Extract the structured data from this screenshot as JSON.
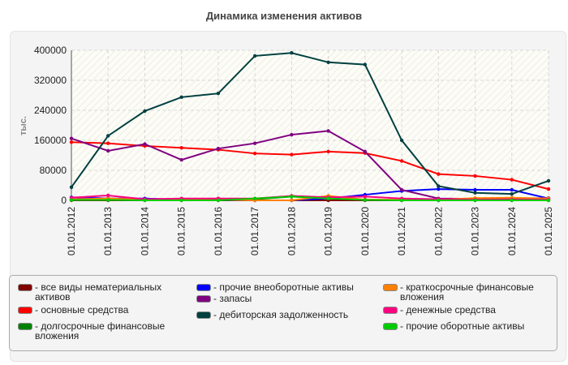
{
  "chart_data": {
    "type": "line",
    "title": "Динамика изменения активов",
    "ylabel": "тыс.",
    "xlabel": "",
    "ylim": [
      0,
      400000
    ],
    "yticks": [
      "0",
      "80000",
      "160000",
      "240000",
      "320000",
      "400000"
    ],
    "grid": true,
    "legend_placement": "bottom",
    "categories": [
      "01.01.2012",
      "01.01.2013",
      "01.01.2014",
      "01.01.2015",
      "01.01.2016",
      "01.01.2017",
      "01.01.2018",
      "01.01.2019",
      "01.01.2020",
      "01.01.2021",
      "01.01.2022",
      "01.01.2023",
      "01.01.2024",
      "01.01.2025"
    ],
    "series": [
      {
        "name": "все виды нематериальных активов",
        "color": "#800000",
        "values": [
          0,
          0,
          0,
          0,
          0,
          0,
          0,
          0,
          0,
          0,
          0,
          3000,
          5000,
          5000
        ]
      },
      {
        "name": "основные средства",
        "color": "#ff0000",
        "values": [
          155000,
          152000,
          145000,
          140000,
          135000,
          125000,
          122000,
          130000,
          126000,
          105000,
          70000,
          65000,
          55000,
          30000
        ]
      },
      {
        "name": "долгосрочные финансовые вложения",
        "color": "#008000",
        "values": [
          2000,
          2000,
          2000,
          2000,
          2000,
          3000,
          10000,
          5000,
          2000,
          0,
          0,
          0,
          0,
          0
        ]
      },
      {
        "name": "прочие внеоборотные активы",
        "color": "#0000ff",
        "values": [
          8000,
          5000,
          5000,
          2000,
          1000,
          0,
          0,
          5000,
          15000,
          25000,
          30000,
          28000,
          28000,
          5000
        ]
      },
      {
        "name": "запасы",
        "color": "#800080",
        "values": [
          165000,
          132000,
          150000,
          108000,
          138000,
          152000,
          175000,
          185000,
          130000,
          28000,
          5000,
          4000,
          5000,
          6000
        ]
      },
      {
        "name": "дебиторская задолженность",
        "color": "#004040",
        "values": [
          35000,
          172000,
          238000,
          275000,
          285000,
          385000,
          393000,
          368000,
          362000,
          160000,
          38000,
          20000,
          17000,
          52000
        ]
      },
      {
        "name": "краткосрочные финансовые вложения",
        "color": "#ff8000",
        "values": [
          3000,
          5000,
          2000,
          2000,
          2000,
          0,
          0,
          12000,
          2000,
          2000,
          2000,
          6000,
          7000,
          5000
        ]
      },
      {
        "name": "денежные средства",
        "color": "#ff0080",
        "values": [
          7000,
          13000,
          3000,
          5000,
          5000,
          5000,
          12000,
          8000,
          10000,
          5000,
          3000,
          2000,
          2000,
          2000
        ]
      },
      {
        "name": "прочие оборотные активы",
        "color": "#00cc00",
        "values": [
          1000,
          1000,
          0,
          0,
          0,
          5000,
          10000,
          5000,
          1000,
          0,
          0,
          0,
          0,
          0
        ]
      }
    ]
  }
}
